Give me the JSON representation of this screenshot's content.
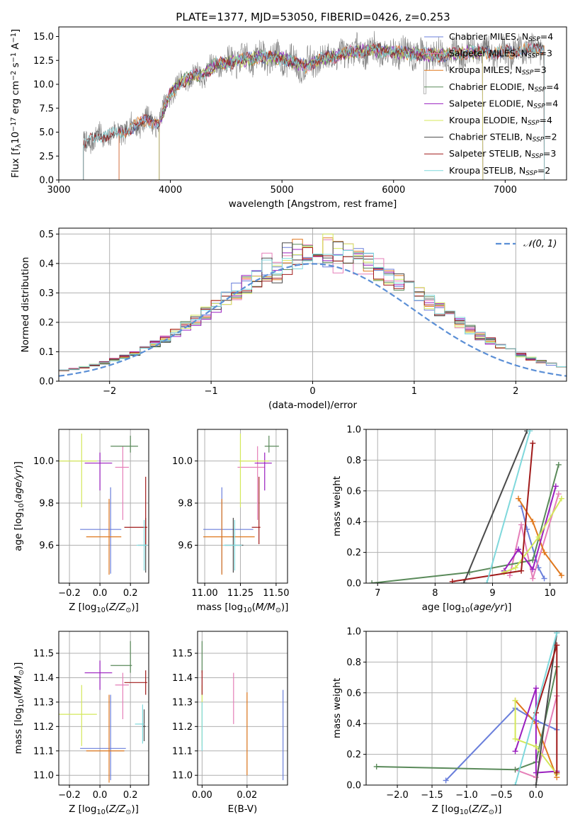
{
  "title": "PLATE=1377, MJD=53050, FIBERID=0426, z=0.253",
  "colors": {
    "chabrier_miles": "#6a7fdb",
    "salpeter_miles": "#e57fb8",
    "kroupa_miles": "#e0781e",
    "chabrier_elodie": "#5a8a5a",
    "salpeter_elodie": "#9a1fbf",
    "kroupa_elodie": "#d4e85a",
    "chabrier_stelib": "#4a4a4a",
    "salpeter_stelib": "#a01a1a",
    "kroupa_stelib": "#7fd8dc",
    "gaussian": "#5b8fd6",
    "grid": "#b0b0b0"
  },
  "chart_data": [
    {
      "id": "spectrum",
      "type": "line",
      "xlabel": "wavelength [Angstrom, rest frame]",
      "ylabel": "Flux [f_λ10^-17 erg cm^-2 s^-1 A^-1]",
      "xlim": [
        3000,
        7550
      ],
      "ylim": [
        0,
        16
      ],
      "xticks": [
        "3000",
        "4000",
        "5000",
        "6000",
        "7000"
      ],
      "yticks": [
        "0.0",
        "2.5",
        "5.0",
        "7.5",
        "10.0",
        "12.5",
        "15.0"
      ],
      "grid": false,
      "legend_position": "top-right",
      "legend": [
        "Chabrier MILES, N_SSP=4",
        "Salpeter MILES, N_SSP=3",
        "Kroupa MILES, N_SSP=3",
        "Chabrier ELODIE, N_SSP=4",
        "Salpeter ELODIE, N_SSP=4",
        "Kroupa ELODIE, N_SSP=4",
        "Chabrier STELIB, N_SSP=2",
        "Salpeter STELIB, N_SSP=3",
        "Kroupa STELIB, N_SSP=2"
      ],
      "series_ranges": [
        {
          "name": "Chabrier MILES",
          "x": [
            3540,
            7350
          ]
        },
        {
          "name": "Salpeter MILES",
          "x": [
            3540,
            7350
          ]
        },
        {
          "name": "Kroupa MILES",
          "x": [
            3540,
            7350
          ]
        },
        {
          "name": "Chabrier ELODIE",
          "x": [
            3900,
            6800
          ]
        },
        {
          "name": "Salpeter ELODIE",
          "x": [
            3900,
            6800
          ]
        },
        {
          "name": "Kroupa ELODIE",
          "x": [
            3900,
            6800
          ]
        },
        {
          "name": "Chabrier STELIB",
          "x": [
            3220,
            7350
          ]
        },
        {
          "name": "Salpeter STELIB",
          "x": [
            3220,
            7350
          ]
        },
        {
          "name": "Kroupa STELIB",
          "x": [
            3220,
            7350
          ]
        }
      ],
      "continuum": [
        [
          3220,
          3.6
        ],
        [
          3300,
          4.3
        ],
        [
          3400,
          4.6
        ],
        [
          3500,
          4.8
        ],
        [
          3600,
          5.2
        ],
        [
          3700,
          5.8
        ],
        [
          3800,
          6.2
        ],
        [
          3900,
          6.0
        ],
        [
          4000,
          9.0
        ],
        [
          4100,
          10.3
        ],
        [
          4200,
          10.8
        ],
        [
          4300,
          11.1
        ],
        [
          4400,
          12.0
        ],
        [
          4500,
          12.2
        ],
        [
          4600,
          12.5
        ],
        [
          4700,
          12.6
        ],
        [
          4800,
          12.9
        ],
        [
          4900,
          12.8
        ],
        [
          5000,
          12.7
        ],
        [
          5100,
          12.3
        ],
        [
          5200,
          11.9
        ],
        [
          5300,
          12.4
        ],
        [
          5400,
          12.8
        ],
        [
          5500,
          13.0
        ],
        [
          5600,
          13.3
        ],
        [
          5800,
          13.6
        ],
        [
          6000,
          13.4
        ],
        [
          6200,
          13.2
        ],
        [
          6400,
          13.0
        ],
        [
          6600,
          13.3
        ],
        [
          6800,
          13.4
        ],
        [
          7000,
          13.3
        ],
        [
          7200,
          13.6
        ],
        [
          7350,
          13.8
        ]
      ]
    },
    {
      "id": "residuals",
      "type": "histogram",
      "xlabel": "(data-model)/error",
      "ylabel": "Normed distribution",
      "xlim": [
        -2.5,
        2.5
      ],
      "ylim": [
        0,
        0.52
      ],
      "xticks": [
        "−2",
        "−1",
        "0",
        "1",
        "2"
      ],
      "yticks": [
        "0.0",
        "0.1",
        "0.2",
        "0.3",
        "0.4",
        "0.5"
      ],
      "grid": true,
      "legend_position": "top-right",
      "legend": [
        "𝒩(0, 1)"
      ],
      "bin_width": 0.1,
      "reference_curve": {
        "name": "𝒩(0, 1)",
        "mu": 0,
        "sigma": 1
      }
    },
    {
      "id": "age_vs_Z",
      "type": "errorbar",
      "xlabel": "Z [log10(Z/Z⊙)]",
      "ylabel": "age [log10(age/yr)]",
      "xlim": [
        -0.27,
        0.32
      ],
      "ylim": [
        9.42,
        10.15
      ],
      "xticks": [
        "−0.2",
        "0.0",
        "0.2"
      ],
      "yticks": [
        "9.6",
        "9.8",
        "10.0"
      ],
      "grid": true,
      "points": [
        {
          "series": "Chabrier MILES",
          "x": 0.07,
          "y": 9.675,
          "xerr": [
            0.2,
            0.07
          ],
          "yerr": [
            0.21,
            0.2
          ]
        },
        {
          "series": "Salpeter MILES",
          "x": 0.15,
          "y": 9.97,
          "xerr": [
            0.05,
            0.04
          ],
          "yerr": [
            0.25,
            0.1
          ]
        },
        {
          "series": "Kroupa MILES",
          "x": 0.06,
          "y": 9.64,
          "xerr": [
            0.15,
            0.08
          ],
          "yerr": [
            0.18,
            0.18
          ]
        },
        {
          "series": "Chabrier ELODIE",
          "x": 0.2,
          "y": 10.07,
          "xerr": [
            0.13,
            0.05
          ],
          "yerr": [
            0.03,
            0.05
          ]
        },
        {
          "series": "Salpeter ELODIE",
          "x": 0.0,
          "y": 9.99,
          "xerr": [
            0.1,
            0.08
          ],
          "yerr": [
            0.13,
            0.05
          ]
        },
        {
          "series": "Kroupa ELODIE",
          "x": -0.12,
          "y": 10.0,
          "xerr": [
            0.15,
            0.1
          ],
          "yerr": [
            0.22,
            0.13
          ]
        },
        {
          "series": "Chabrier STELIB",
          "x": 0.3,
          "y": 9.6,
          "xerr": [
            0.05,
            0.01
          ],
          "yerr": [
            0.13,
            0.13
          ]
        },
        {
          "series": "Salpeter STELIB",
          "x": 0.3,
          "y": 9.685,
          "xerr": [
            0.14,
            0.01
          ],
          "yerr": [
            0.08,
            0.24
          ]
        },
        {
          "series": "Kroupa STELIB",
          "x": 0.29,
          "y": 9.6,
          "xerr": [
            0.05,
            0.02
          ],
          "yerr": [
            0.12,
            0.12
          ]
        }
      ]
    },
    {
      "id": "age_vs_mass",
      "type": "errorbar",
      "xlabel": "mass [log10(M/M⊙)]",
      "ylabel": "",
      "xlim": [
        10.95,
        11.58
      ],
      "ylim": [
        9.42,
        10.15
      ],
      "xticks": [
        "11.00",
        "11.25",
        "11.50"
      ],
      "yticks": [
        "9.6",
        "9.8",
        "10.0"
      ],
      "grid": true,
      "points": [
        {
          "series": "Chabrier MILES",
          "x": 11.12,
          "y": 9.675,
          "xerr": [
            0.13,
            0.22
          ],
          "yerr": [
            0.21,
            0.2
          ]
        },
        {
          "series": "Salpeter MILES",
          "x": 11.37,
          "y": 9.97,
          "xerr": [
            0.14,
            0.05
          ],
          "yerr": [
            0.25,
            0.1
          ]
        },
        {
          "series": "Kroupa MILES",
          "x": 11.12,
          "y": 9.64,
          "xerr": [
            0.13,
            0.23
          ],
          "yerr": [
            0.18,
            0.18
          ]
        },
        {
          "series": "Chabrier ELODIE",
          "x": 11.45,
          "y": 10.07,
          "xerr": [
            0.03,
            0.07
          ],
          "yerr": [
            0.03,
            0.05
          ]
        },
        {
          "series": "Salpeter ELODIE",
          "x": 11.42,
          "y": 9.99,
          "xerr": [
            0.07,
            0.05
          ],
          "yerr": [
            0.13,
            0.05
          ]
        },
        {
          "series": "Kroupa ELODIE",
          "x": 11.25,
          "y": 10.0,
          "xerr": [
            0.01,
            0.2
          ],
          "yerr": [
            0.22,
            0.13
          ]
        },
        {
          "series": "Chabrier STELIB",
          "x": 11.2,
          "y": 9.6,
          "xerr": [
            0.06,
            0.07
          ],
          "yerr": [
            0.13,
            0.13
          ]
        },
        {
          "series": "Salpeter STELIB",
          "x": 11.38,
          "y": 9.685,
          "xerr": [
            0.05,
            0.01
          ],
          "yerr": [
            0.08,
            0.24
          ]
        },
        {
          "series": "Kroupa STELIB",
          "x": 11.21,
          "y": 9.6,
          "xerr": [
            0.08,
            0.05
          ],
          "yerr": [
            0.12,
            0.12
          ]
        }
      ]
    },
    {
      "id": "massweight_vs_age",
      "type": "line",
      "xlabel": "age [log10(age/yr)]",
      "ylabel": "mass weight",
      "xlim": [
        6.8,
        10.3
      ],
      "ylim": [
        0,
        1
      ],
      "xticks": [
        "7",
        "8",
        "9",
        "10"
      ],
      "yticks": [
        "0.0",
        "0.2",
        "0.4",
        "0.6",
        "0.8",
        "1.0"
      ],
      "grid": true,
      "series": [
        {
          "name": "Chabrier MILES",
          "x": [
            9.5,
            9.6,
            9.8,
            9.9
          ],
          "y": [
            0.5,
            0.35,
            0.1,
            0.03
          ]
        },
        {
          "name": "Salpeter MILES",
          "x": [
            9.3,
            9.5,
            9.7,
            10.15
          ],
          "y": [
            0.05,
            0.38,
            0.03,
            0.58
          ]
        },
        {
          "name": "Kroupa MILES",
          "x": [
            9.45,
            9.7,
            9.9,
            10.2
          ],
          "y": [
            0.55,
            0.4,
            0.2,
            0.05
          ]
        },
        {
          "name": "Chabrier ELODIE",
          "x": [
            6.9,
            8.6,
            9.7,
            10.15
          ],
          "y": [
            0.0,
            0.07,
            0.15,
            0.77
          ]
        },
        {
          "name": "Salpeter ELODIE",
          "x": [
            9.2,
            9.45,
            9.7,
            10.1
          ],
          "y": [
            0.08,
            0.22,
            0.09,
            0.63
          ]
        },
        {
          "name": "Kroupa ELODIE",
          "x": [
            9.2,
            9.4,
            9.8,
            10.2
          ],
          "y": [
            0.07,
            0.1,
            0.3,
            0.55
          ]
        },
        {
          "name": "Chabrier STELIB",
          "x": [
            8.5,
            9.6
          ],
          "y": [
            0.0,
            0.99
          ]
        },
        {
          "name": "Salpeter STELIB",
          "x": [
            8.3,
            9.5,
            9.7
          ],
          "y": [
            0.01,
            0.08,
            0.91
          ]
        },
        {
          "name": "Kroupa STELIB",
          "x": [
            8.9,
            9.65
          ],
          "y": [
            0.0,
            0.99
          ]
        }
      ]
    },
    {
      "id": "mass_vs_Z",
      "type": "errorbar",
      "xlabel": "Z [log10(Z/Z⊙)]",
      "ylabel": "mass [log10(M/M⊙)]",
      "xlim": [
        -0.27,
        0.32
      ],
      "ylim": [
        10.96,
        11.59
      ],
      "xticks": [
        "−0.2",
        "0.0",
        "0.2"
      ],
      "yticks": [
        "11.0",
        "11.1",
        "11.2",
        "11.3",
        "11.4",
        "11.5"
      ],
      "grid": true,
      "points": [
        {
          "series": "Chabrier MILES",
          "x": 0.07,
          "y": 11.11,
          "xerr": [
            0.2,
            0.1
          ],
          "yerr": [
            0.13,
            0.22
          ]
        },
        {
          "series": "Salpeter MILES",
          "x": 0.15,
          "y": 11.37,
          "xerr": [
            0.05,
            0.04
          ],
          "yerr": [
            0.14,
            0.05
          ]
        },
        {
          "series": "Kroupa MILES",
          "x": 0.06,
          "y": 11.1,
          "xerr": [
            0.15,
            0.1
          ],
          "yerr": [
            0.13,
            0.23
          ]
        },
        {
          "series": "Chabrier ELODIE",
          "x": 0.2,
          "y": 11.45,
          "xerr": [
            0.13,
            0.01
          ],
          "yerr": [
            0.03,
            0.1
          ]
        },
        {
          "series": "Salpeter ELODIE",
          "x": 0.0,
          "y": 11.42,
          "xerr": [
            0.1,
            0.08
          ],
          "yerr": [
            0.07,
            0.05
          ]
        },
        {
          "series": "Kroupa ELODIE",
          "x": -0.12,
          "y": 11.25,
          "xerr": [
            0.15,
            0.1
          ],
          "yerr": [
            0.13,
            0.12
          ]
        },
        {
          "series": "Chabrier STELIB",
          "x": 0.29,
          "y": 11.2,
          "xerr": [
            0.01,
            0.01
          ],
          "yerr": [
            0.06,
            0.07
          ]
        },
        {
          "series": "Salpeter STELIB",
          "x": 0.3,
          "y": 11.38,
          "xerr": [
            0.14,
            0.01
          ],
          "yerr": [
            0.05,
            0.05
          ]
        },
        {
          "series": "Kroupa STELIB",
          "x": 0.28,
          "y": 11.21,
          "xerr": [
            0.05,
            0.01
          ],
          "yerr": [
            0.08,
            0.08
          ]
        }
      ]
    },
    {
      "id": "mass_vs_ebv",
      "type": "errorbar",
      "xlabel": "E(B-V)",
      "ylabel": "",
      "xlim": [
        -0.002,
        0.038
      ],
      "ylim": [
        10.96,
        11.59
      ],
      "xticks": [
        "0.00",
        "0.02"
      ],
      "yticks": [
        "11.0",
        "11.1",
        "11.2",
        "11.3",
        "11.4",
        "11.5"
      ],
      "grid": true,
      "points": [
        {
          "series": "Chabrier MILES",
          "x": 0.036,
          "y": 11.17,
          "yerr": [
            0.19,
            0.18
          ]
        },
        {
          "series": "Salpeter MILES",
          "x": 0.014,
          "y": 11.32,
          "yerr": [
            0.11,
            0.1
          ]
        },
        {
          "series": "Kroupa MILES",
          "x": 0.02,
          "y": 11.17,
          "yerr": [
            0.17,
            0.17
          ]
        },
        {
          "series": "Chabrier ELODIE",
          "x": 0.0,
          "y": 11.45,
          "yerr": [
            0.03,
            0.1
          ]
        },
        {
          "series": "Kroupa ELODIE",
          "x": 0.0,
          "y": 11.25,
          "yerr": [
            0.13,
            0.12
          ]
        },
        {
          "series": "Salpeter STELIB",
          "x": 0.0,
          "y": 11.38,
          "yerr": [
            0.05,
            0.05
          ]
        },
        {
          "series": "Kroupa STELIB",
          "x": 0.0,
          "y": 11.2,
          "yerr": [
            0.1,
            0.1
          ]
        }
      ]
    },
    {
      "id": "massweight_vs_Z",
      "type": "line",
      "xlabel": "Z [log10(Z/Z⊙)]",
      "ylabel": "mass weight",
      "xlim": [
        -2.45,
        0.45
      ],
      "ylim": [
        0,
        1
      ],
      "xticks": [
        "−2.0",
        "−1.5",
        "−1.0",
        "−0.5",
        "0.0"
      ],
      "yticks": [
        "0.0",
        "0.2",
        "0.4",
        "0.6",
        "0.8",
        "1.0"
      ],
      "grid": true,
      "series": [
        {
          "name": "Chabrier MILES",
          "x": [
            -1.3,
            -0.3,
            0.0,
            0.3
          ],
          "y": [
            0.03,
            0.5,
            0.42,
            0.36
          ]
        },
        {
          "name": "Salpeter MILES",
          "x": [
            -0.3,
            0.0,
            0.3
          ],
          "y": [
            0.1,
            0.05,
            0.58
          ]
        },
        {
          "name": "Kroupa MILES",
          "x": [
            -0.3,
            0.0,
            0.3
          ],
          "y": [
            0.55,
            0.4,
            0.05
          ]
        },
        {
          "name": "Chabrier ELODIE",
          "x": [
            -2.3,
            -0.3,
            0.0,
            0.3
          ],
          "y": [
            0.12,
            0.1,
            0.15,
            0.77
          ]
        },
        {
          "name": "Salpeter ELODIE",
          "x": [
            -0.3,
            0.0,
            0.0,
            0.3
          ],
          "y": [
            0.22,
            0.63,
            0.08,
            0.09
          ]
        },
        {
          "name": "Kroupa ELODIE",
          "x": [
            -0.3,
            -0.3,
            0.0,
            0.3
          ],
          "y": [
            0.55,
            0.3,
            0.25,
            0.07
          ]
        },
        {
          "name": "Chabrier STELIB",
          "x": [
            0.0,
            0.3
          ],
          "y": [
            0.0,
            0.99
          ]
        },
        {
          "name": "Salpeter STELIB",
          "x": [
            0.0,
            0.3,
            0.3
          ],
          "y": [
            0.47,
            0.91,
            0.08
          ]
        },
        {
          "name": "Kroupa STELIB",
          "x": [
            -0.3,
            0.3
          ],
          "y": [
            0.0,
            0.99
          ]
        }
      ]
    }
  ]
}
